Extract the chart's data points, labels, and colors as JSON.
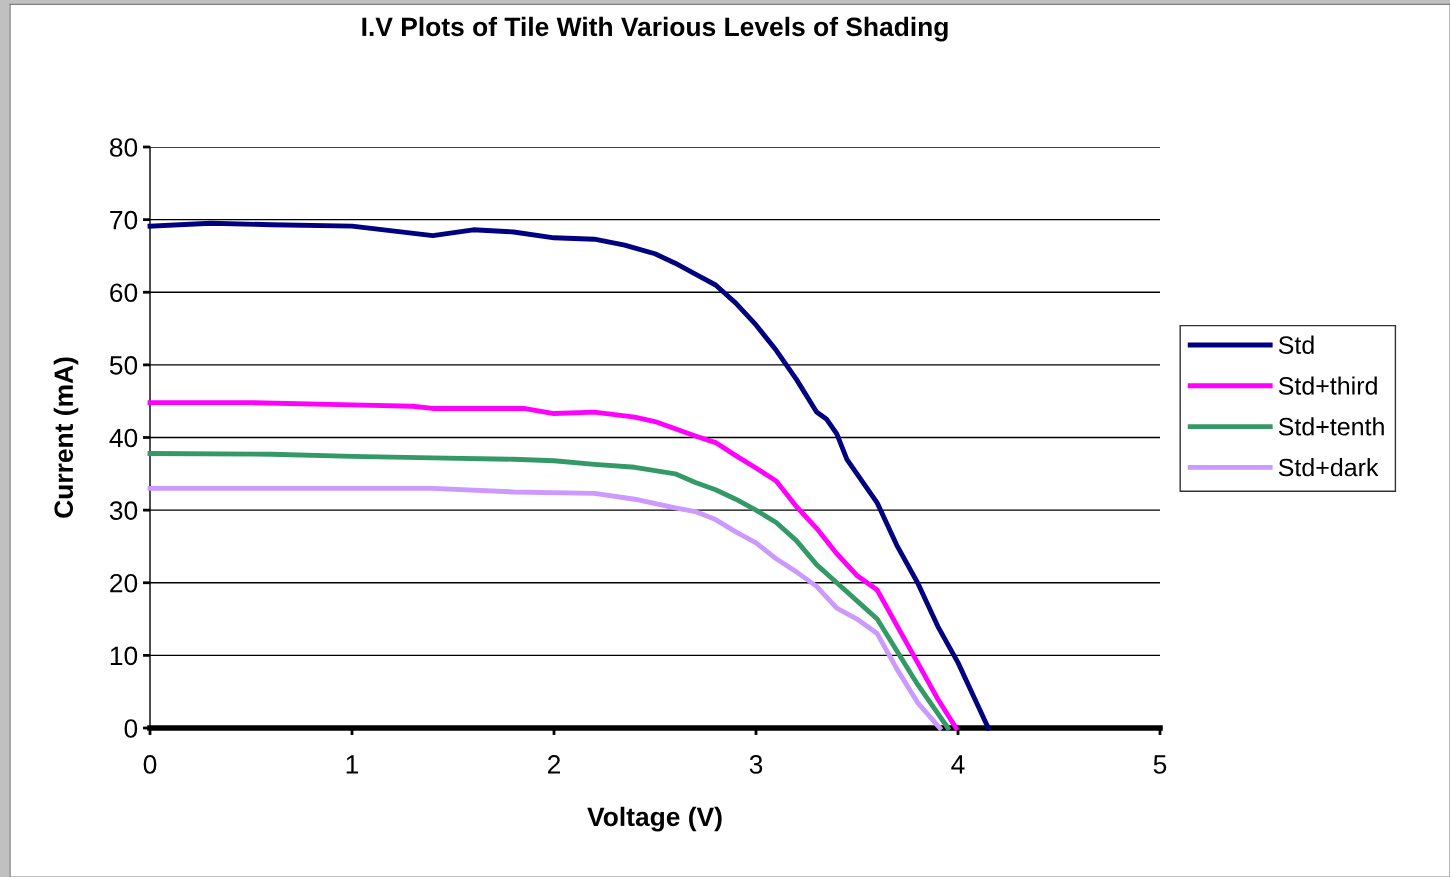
{
  "chart_data": {
    "type": "line",
    "title": "I.V Plots of Tile With Various Levels of Shading",
    "xlabel": "Voltage (V)",
    "ylabel": "Current (mA)",
    "xlim": [
      0,
      5
    ],
    "xticks": [
      0,
      1,
      2,
      3,
      4,
      5
    ],
    "ylim": [
      0,
      80
    ],
    "yticks": [
      0,
      10,
      20,
      30,
      40,
      50,
      60,
      70,
      80
    ],
    "grid": "y",
    "legend": "right",
    "marker": "none",
    "line_style": "solid",
    "series": [
      {
        "name": "Std",
        "color": "#000080",
        "x": [
          0,
          0.3,
          0.6,
          1.0,
          1.4,
          1.6,
          1.8,
          2.0,
          2.2,
          2.35,
          2.5,
          2.6,
          2.7,
          2.8,
          2.9,
          3.0,
          3.1,
          3.2,
          3.3,
          3.35,
          3.4,
          3.45,
          3.55,
          3.6,
          3.7,
          3.8,
          3.9,
          4.0,
          4.1,
          4.15
        ],
        "values": [
          69.1,
          69.5,
          69.3,
          69.1,
          67.8,
          68.6,
          68.3,
          67.5,
          67.3,
          66.5,
          65.3,
          64,
          62.5,
          61,
          58.5,
          55.5,
          52,
          48,
          43.5,
          42.5,
          40.5,
          37,
          33,
          31,
          25,
          20,
          14,
          9,
          3,
          0
        ]
      },
      {
        "name": "Std+third",
        "color": "#ff00ff",
        "x": [
          0,
          0.5,
          1.0,
          1.3,
          1.4,
          1.85,
          2.0,
          2.2,
          2.4,
          2.5,
          2.6,
          2.7,
          2.8,
          2.9,
          3.0,
          3.1,
          3.2,
          3.3,
          3.4,
          3.5,
          3.6,
          3.7,
          3.8,
          3.9,
          3.99
        ],
        "values": [
          44.8,
          44.8,
          44.5,
          44.3,
          44.0,
          44.0,
          43.3,
          43.5,
          42.8,
          42.2,
          41.2,
          40.2,
          39.3,
          37.5,
          35.8,
          34,
          30.5,
          27.5,
          24,
          21,
          19,
          14,
          9,
          4,
          0
        ]
      },
      {
        "name": "Std+tenth",
        "color": "#339966",
        "x": [
          0,
          0.6,
          1.0,
          1.4,
          1.8,
          2.0,
          2.2,
          2.4,
          2.6,
          2.7,
          2.8,
          2.9,
          3.0,
          3.1,
          3.2,
          3.3,
          3.4,
          3.5,
          3.6,
          3.7,
          3.8,
          3.9,
          3.95
        ],
        "values": [
          37.8,
          37.7,
          37.4,
          37.2,
          37.0,
          36.8,
          36.3,
          35.9,
          35.0,
          33.8,
          32.8,
          31.5,
          30,
          28.3,
          25.8,
          22.5,
          20,
          17.5,
          15,
          10.5,
          6,
          2,
          0
        ]
      },
      {
        "name": "Std+dark",
        "color": "#cc99ff",
        "x": [
          0,
          1.0,
          1.4,
          1.8,
          2.2,
          2.4,
          2.6,
          2.7,
          2.8,
          2.9,
          3.0,
          3.1,
          3.2,
          3.3,
          3.4,
          3.5,
          3.6,
          3.7,
          3.8,
          3.91
        ],
        "values": [
          33,
          33.0,
          33,
          32.5,
          32.3,
          31.5,
          30.3,
          29.8,
          28.7,
          27,
          25.5,
          23.3,
          21.5,
          19.5,
          16.5,
          15,
          13,
          8,
          3.5,
          0
        ]
      }
    ]
  }
}
